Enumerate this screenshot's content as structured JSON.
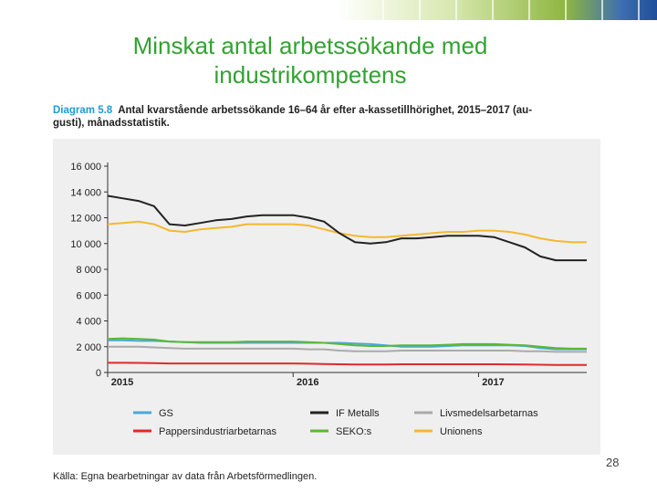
{
  "slide": {
    "title_line1": "Minskat antal arbetssökande med",
    "title_line2": "industrikompetens",
    "diagram_number": "Diagram 5.8",
    "diagram_title_line1": "Antal kvarstående arbetssökande 16–64 år efter a-kassetillhörighet, 2015–2017 (au-",
    "diagram_title_line2": "gusti), månadsstatistik.",
    "page_number": "28",
    "source": "Källa: Egna bearbetningar av data från Arbetsförmedlingen."
  },
  "colors": {
    "title": "#33a233",
    "heading_number": "#1f9ad6",
    "panel": "#efefef"
  },
  "chart_data": {
    "type": "line",
    "x_tick_labels": [
      "2015",
      "2016",
      "2017"
    ],
    "x_tick_month_index": [
      0,
      12,
      24
    ],
    "months": 32,
    "ylim": [
      0,
      16000
    ],
    "y_ticks": [
      0,
      2000,
      4000,
      6000,
      8000,
      10000,
      12000,
      14000,
      16000
    ],
    "y_tick_labels": [
      "0",
      "2 000",
      "4 000",
      "6 000",
      "8 000",
      "10 000",
      "12 000",
      "14 000",
      "16 000"
    ],
    "grid": false,
    "legend_position": "bottom",
    "series": [
      {
        "name": "GS",
        "color": "#4aa8d8",
        "values": [
          2500,
          2500,
          2450,
          2450,
          2400,
          2350,
          2300,
          2300,
          2300,
          2300,
          2300,
          2300,
          2300,
          2300,
          2300,
          2300,
          2250,
          2200,
          2100,
          2000,
          2000,
          2000,
          2050,
          2100,
          2100,
          2100,
          2100,
          2050,
          1900,
          1800,
          1800,
          1800
        ]
      },
      {
        "name": "IF Metalls",
        "color": "#222222",
        "values": [
          13700,
          13500,
          13300,
          12900,
          11500,
          11400,
          11600,
          11800,
          11900,
          12100,
          12200,
          12200,
          12200,
          12000,
          11700,
          10800,
          10100,
          10000,
          10100,
          10400,
          10400,
          10500,
          10600,
          10600,
          10600,
          10500,
          10100,
          9700,
          9000,
          8700,
          8700,
          8700
        ]
      },
      {
        "name": "Livsmedelsarbetarnas",
        "color": "#aaaaaa",
        "values": [
          2000,
          2000,
          2000,
          1950,
          1900,
          1850,
          1850,
          1850,
          1850,
          1850,
          1850,
          1850,
          1850,
          1800,
          1800,
          1700,
          1650,
          1650,
          1650,
          1700,
          1700,
          1700,
          1700,
          1700,
          1700,
          1700,
          1700,
          1650,
          1650,
          1600,
          1600,
          1600
        ]
      },
      {
        "name": "Pappersindustriarbetarnas",
        "color": "#e02a2a",
        "values": [
          750,
          750,
          740,
          720,
          700,
          700,
          700,
          700,
          700,
          700,
          700,
          700,
          700,
          680,
          660,
          640,
          620,
          620,
          620,
          640,
          640,
          640,
          640,
          640,
          640,
          640,
          630,
          620,
          600,
          590,
          590,
          590
        ]
      },
      {
        "name": "SEKO:s",
        "color": "#5bb832",
        "values": [
          2600,
          2650,
          2600,
          2550,
          2400,
          2350,
          2350,
          2350,
          2350,
          2400,
          2400,
          2400,
          2400,
          2350,
          2300,
          2200,
          2100,
          2050,
          2050,
          2100,
          2100,
          2100,
          2150,
          2200,
          2200,
          2200,
          2150,
          2100,
          2000,
          1900,
          1850,
          1850
        ]
      },
      {
        "name": "Unionens",
        "color": "#f5b82e",
        "values": [
          11500,
          11600,
          11700,
          11500,
          11000,
          10900,
          11100,
          11200,
          11300,
          11500,
          11500,
          11500,
          11500,
          11400,
          11100,
          10800,
          10600,
          10500,
          10500,
          10600,
          10700,
          10800,
          10900,
          10900,
          11000,
          11000,
          10900,
          10700,
          10400,
          10200,
          10100,
          10100
        ]
      }
    ]
  }
}
